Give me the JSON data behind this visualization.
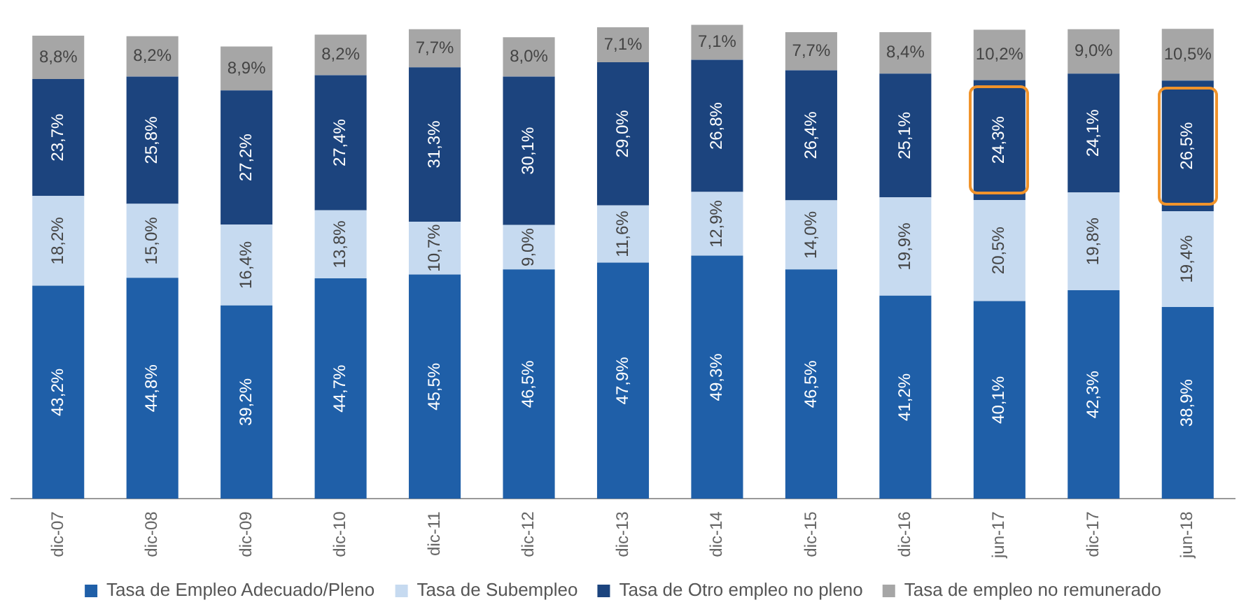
{
  "chart_data": {
    "type": "bar",
    "stacked": true,
    "legend": "bottom",
    "grid": false,
    "categories": [
      "dic-07",
      "dic-08",
      "dic-09",
      "dic-10",
      "dic-11",
      "dic-12",
      "dic-13",
      "dic-14",
      "dic-15",
      "dic-16",
      "jun-17",
      "dic-17",
      "jun-18"
    ],
    "series": [
      {
        "name": "Tasa de Empleo Adecuado/Pleno",
        "color": "#1f5fa8",
        "values": [
          43.2,
          44.8,
          39.2,
          44.7,
          45.5,
          46.5,
          47.9,
          49.3,
          46.5,
          41.2,
          40.1,
          42.3,
          38.9
        ],
        "value_labels": [
          "43,2%",
          "44,8%",
          "39,2%",
          "44,7%",
          "45,5%",
          "46,5%",
          "47,9%",
          "49,3%",
          "46,5%",
          "41,2%",
          "40,1%",
          "42,3%",
          "38,9%"
        ]
      },
      {
        "name": "Tasa de Subempleo",
        "color": "#c6daf0",
        "values": [
          18.2,
          15.0,
          16.4,
          13.8,
          10.7,
          9.0,
          11.6,
          12.9,
          14.0,
          19.9,
          20.5,
          19.8,
          19.4
        ],
        "value_labels": [
          "18,2%",
          "15,0%",
          "16,4%",
          "13,8%",
          "10,7%",
          "9,0%",
          "11,6%",
          "12,9%",
          "14,0%",
          "19,9%",
          "20,5%",
          "19,8%",
          "19,4%"
        ]
      },
      {
        "name": "Tasa de Otro empleo no pleno",
        "color": "#1c447e",
        "values": [
          23.7,
          25.8,
          27.2,
          27.4,
          31.3,
          30.1,
          29.0,
          26.8,
          26.4,
          25.1,
          24.3,
          24.1,
          26.5
        ],
        "value_labels": [
          "23,7%",
          "25,8%",
          "27,2%",
          "27,4%",
          "31,3%",
          "30,1%",
          "29,0%",
          "26,8%",
          "26,4%",
          "25,1%",
          "24,3%",
          "24,1%",
          "26,5%"
        ]
      },
      {
        "name": "Tasa de empleo no remunerado",
        "color": "#a6a6a6",
        "values": [
          8.8,
          8.2,
          8.9,
          8.2,
          7.7,
          8.0,
          7.1,
          7.1,
          7.7,
          8.4,
          10.2,
          9.0,
          10.5
        ],
        "value_labels": [
          "8,8%",
          "8,2%",
          "8,9%",
          "8,2%",
          "7,7%",
          "8,0%",
          "7,1%",
          "7,1%",
          "7,7%",
          "8,4%",
          "10,2%",
          "9,0%",
          "10,5%"
        ]
      }
    ]
  }
}
